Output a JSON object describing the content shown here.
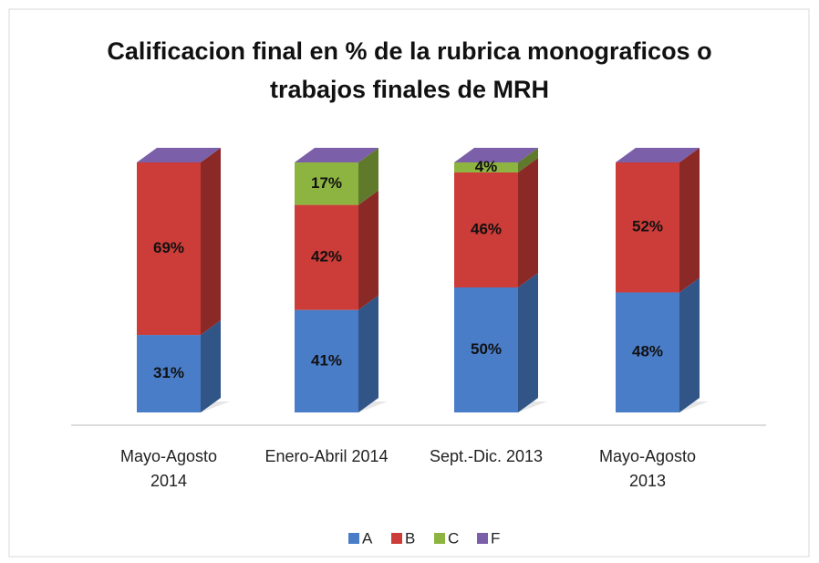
{
  "chart_data": {
    "type": "stacked-bar-3d",
    "title": "Calificacion final en % de la rubrica monograficos o trabajos finales de MRH",
    "categories": [
      "Mayo-Agosto 2014",
      "Enero-Abril 2014",
      "Sept.-Dic. 2013",
      "Mayo-Agosto 2013"
    ],
    "series": [
      {
        "name": "A",
        "color": "#4a7dc8",
        "values": [
          31,
          41,
          50,
          48
        ],
        "value_labels": [
          "31%",
          "41%",
          "50%",
          "48%"
        ]
      },
      {
        "name": "B",
        "color": "#cc3c38",
        "values": [
          69,
          42,
          46,
          52
        ],
        "value_labels": [
          "69%",
          "42%",
          "46%",
          "52%"
        ]
      },
      {
        "name": "C",
        "color": "#8db440",
        "values": [
          0,
          17,
          4,
          0
        ],
        "value_labels": [
          null,
          "17%",
          "4%",
          null
        ]
      },
      {
        "name": "F",
        "color": "#7b5fa8",
        "values": [
          0,
          0,
          0,
          0
        ]
      }
    ],
    "ylim": [
      0,
      100
    ],
    "legend": "bottom"
  }
}
